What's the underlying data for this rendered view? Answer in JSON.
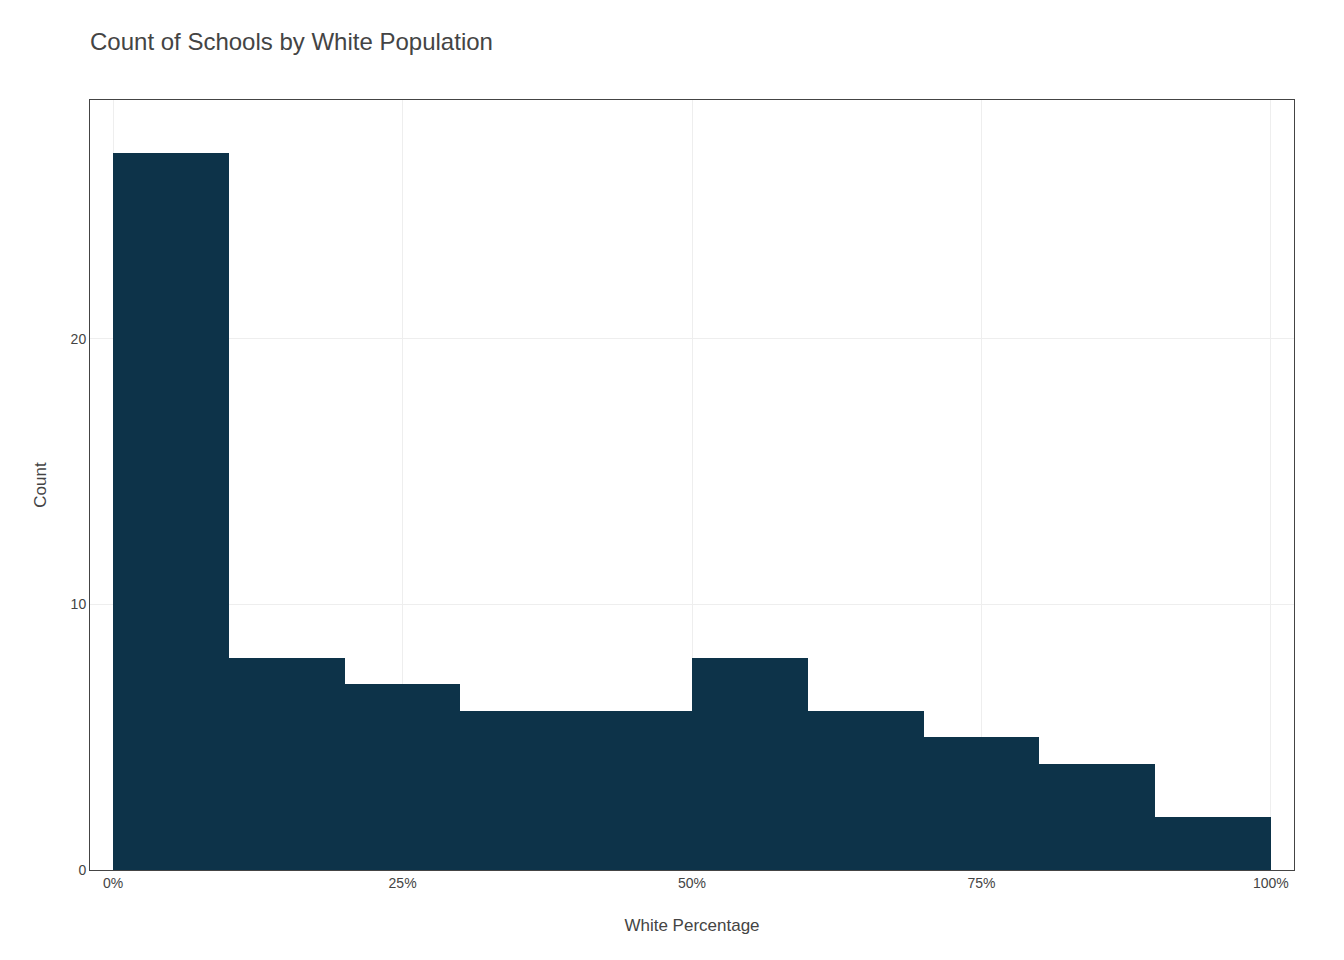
{
  "chart_data": {
    "type": "histogram",
    "title": "Count of Schools by White Population",
    "xlabel": "White Percentage",
    "ylabel": "Count",
    "bins": [
      0,
      10,
      20,
      30,
      40,
      50,
      60,
      70,
      80,
      90,
      100
    ],
    "values": [
      27,
      8,
      7,
      6,
      6,
      8,
      6,
      5,
      4,
      2
    ],
    "color": "#0d3349",
    "xlim": [
      -2,
      102
    ],
    "ylim": [
      0,
      29
    ],
    "xticks": [
      {
        "value": 0,
        "label": "0%"
      },
      {
        "value": 25,
        "label": "25%"
      },
      {
        "value": 50,
        "label": "50%"
      },
      {
        "value": 75,
        "label": "75%"
      },
      {
        "value": 100,
        "label": "100%"
      }
    ],
    "yticks": [
      0,
      10,
      20
    ],
    "grid": true
  }
}
